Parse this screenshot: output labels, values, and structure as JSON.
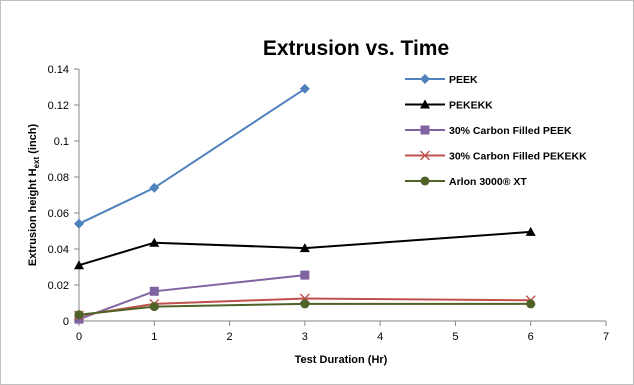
{
  "chart_data": {
    "type": "line",
    "title": "Extrusion vs. Time",
    "xlabel": "Test Duration (Hr)",
    "ylabel_main": "Extrusion height H",
    "ylabel_sub": "ext",
    "ylabel_unit": " (inch)",
    "xlim": [
      0,
      7
    ],
    "ylim": [
      0,
      0.14
    ],
    "xticks": [
      0,
      1,
      2,
      3,
      4,
      5,
      6,
      7
    ],
    "xtick_labels": [
      "0",
      "1",
      "2",
      "3",
      "4",
      "5",
      "6",
      "7"
    ],
    "yticks": [
      0,
      0.02,
      0.04,
      0.06,
      0.08,
      0.1,
      0.12,
      0.14
    ],
    "ytick_labels": [
      "0",
      "0.02",
      "0.04",
      "0.06",
      "0.08",
      "0.1",
      "0.12",
      "0.14"
    ],
    "grid": false,
    "legend_position": "right",
    "series": [
      {
        "name": "PEEK",
        "color": "#4f81bd",
        "marker": "diamond",
        "x": [
          0,
          1,
          3
        ],
        "y": [
          0.054,
          0.074,
          0.129
        ]
      },
      {
        "name": "PEKEKK",
        "color": "#000000",
        "marker": "triangle",
        "x": [
          0,
          1,
          3,
          6
        ],
        "y": [
          0.031,
          0.0435,
          0.0405,
          0.0495
        ]
      },
      {
        "name": "30% Carbon Filled PEEK",
        "color": "#8064a2",
        "marker": "square",
        "x": [
          0,
          1,
          3
        ],
        "y": [
          0.001,
          0.0165,
          0.0255
        ]
      },
      {
        "name": "30% Carbon Filled PEKEKK",
        "color": "#c0504d",
        "marker": "x",
        "x": [
          0,
          1,
          3,
          6
        ],
        "y": [
          0.003,
          0.0095,
          0.0125,
          0.0115
        ]
      },
      {
        "name": "Arlon 3000® XT",
        "color": "#4f6228",
        "marker": "circle",
        "x": [
          0,
          1,
          3,
          6
        ],
        "y": [
          0.0035,
          0.008,
          0.0095,
          0.0095
        ]
      }
    ]
  }
}
